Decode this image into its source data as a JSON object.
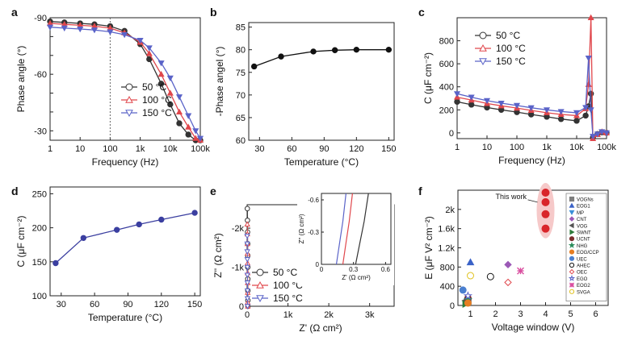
{
  "chart_data": [
    {
      "panel": "a",
      "type": "line",
      "xlabel": "Frequency (Hz)",
      "ylabel": "Phase angle (°)",
      "xscale": "log",
      "xlim": [
        1,
        100000
      ],
      "ylim": [
        -90,
        -25
      ],
      "yreverse": true,
      "xticks": [
        1,
        10,
        100,
        1000,
        10000,
        100000
      ],
      "xticklabels": [
        "1",
        "10",
        "100",
        "1k",
        "10k",
        "100k"
      ],
      "yticks": [
        -90,
        -60,
        -30
      ],
      "yticklabels": [
        "-90",
        "-60",
        "-30"
      ],
      "yticks_minor": [
        -90,
        -80,
        -70,
        -60,
        -50,
        -40,
        -30
      ],
      "yticklabels_full": [
        "-90",
        "",
        "",
        "-60",
        "",
        "",
        "-30"
      ],
      "vline_x": 100,
      "legend_position": "center-right",
      "x": [
        1,
        3,
        10,
        30,
        100,
        300,
        1000,
        2000,
        5000,
        10000,
        20000,
        40000,
        70000,
        100000
      ],
      "series": [
        {
          "name": "50 °C",
          "color": "#333333",
          "marker": "circle",
          "values": [
            -88,
            -87.5,
            -87,
            -86.5,
            -85.5,
            -83,
            -76,
            -68,
            -55,
            -44,
            -34,
            -28,
            -25,
            -25
          ]
        },
        {
          "name": "100 °C",
          "color": "#e0474c",
          "marker": "triangle-up",
          "values": [
            -87,
            -86.5,
            -86,
            -85.5,
            -84.5,
            -82,
            -77,
            -71,
            -60,
            -50,
            -40,
            -32,
            -26,
            -25
          ]
        },
        {
          "name": "150 °C",
          "color": "#5a63c8",
          "marker": "triangle-down",
          "values": [
            -85,
            -84.5,
            -84,
            -83.5,
            -82.5,
            -81,
            -78,
            -74,
            -66,
            -58,
            -48,
            -38,
            -30,
            -26
          ]
        }
      ],
      "legend": [
        "50 °C",
        "100 °C",
        "150 °C"
      ]
    },
    {
      "panel": "b",
      "type": "line",
      "xlabel": "Temperature (°C)",
      "ylabel": "-Phase angel (°)",
      "xlim": [
        20,
        155
      ],
      "ylim": [
        60,
        86
      ],
      "xticks": [
        30,
        60,
        90,
        120,
        150
      ],
      "yticks": [
        60,
        65,
        70,
        75,
        80,
        85
      ],
      "x": [
        25,
        50,
        80,
        100,
        120,
        150
      ],
      "series": [
        {
          "name": "",
          "color": "#111111",
          "marker": "circle",
          "values": [
            76.3,
            78.5,
            79.6,
            79.9,
            80.0,
            80.0
          ]
        }
      ]
    },
    {
      "panel": "c",
      "type": "line",
      "xlabel": "Frequency (Hz)",
      "ylabel": "C (μF cm⁻²)",
      "xscale": "log",
      "xlim": [
        1,
        100000
      ],
      "ylim": [
        -50,
        1000
      ],
      "xticks": [
        1,
        10,
        100,
        1000,
        10000,
        100000
      ],
      "xticklabels": [
        "1",
        "10",
        "100",
        "1k",
        "10k",
        "100k"
      ],
      "yticks": [
        0,
        200,
        400,
        600,
        800
      ],
      "legend_position": "top",
      "x": [
        1,
        3,
        10,
        30,
        100,
        300,
        1000,
        3000,
        10000,
        20000,
        25000,
        30000,
        35000,
        50000,
        70000,
        100000
      ],
      "series": [
        {
          "name": "50 °C",
          "color": "#333333",
          "marker": "circle",
          "values": [
            270,
            245,
            220,
            200,
            180,
            160,
            140,
            120,
            105,
            150,
            230,
            340,
            -40,
            -10,
            5,
            0
          ]
        },
        {
          "name": "100 °C",
          "color": "#e0474c",
          "marker": "triangle-up",
          "values": [
            310,
            285,
            255,
            235,
            215,
            195,
            175,
            160,
            150,
            210,
            420,
            1000,
            -50,
            -15,
            10,
            0
          ]
        },
        {
          "name": "150 °C",
          "color": "#5a63c8",
          "marker": "triangle-down",
          "values": [
            340,
            310,
            280,
            258,
            238,
            218,
            200,
            185,
            175,
            220,
            650,
            200,
            -30,
            -10,
            10,
            0
          ]
        }
      ],
      "legend": [
        "50 °C",
        "100 °C",
        "150 °C"
      ]
    },
    {
      "panel": "d",
      "type": "line",
      "xlabel": "Temperature (°C)",
      "ylabel": "C (μF cm⁻²)",
      "xlim": [
        20,
        155
      ],
      "ylim": [
        100,
        260
      ],
      "xticks": [
        30,
        60,
        90,
        120,
        150
      ],
      "yticks": [
        100,
        150,
        200,
        250
      ],
      "x": [
        25,
        50,
        80,
        100,
        120,
        150
      ],
      "series": [
        {
          "name": "",
          "color": "#3b3fa0",
          "marker": "circle",
          "values": [
            148,
            185,
            197,
            205,
            212,
            222
          ]
        }
      ]
    },
    {
      "panel": "e",
      "type": "scatter",
      "xlabel": "Z' (Ω cm²)",
      "ylabel": "Z'' (Ω cm²)",
      "xlim": [
        0,
        3600
      ],
      "ylim": [
        -2600,
        0
      ],
      "yreverse": true,
      "xticks": [
        0,
        1000,
        2000,
        3000
      ],
      "xticklabels": [
        "0",
        "1k",
        "2k",
        "3k"
      ],
      "yticks": [
        0,
        -1000,
        -2000
      ],
      "yticklabels": [
        "0",
        "-1k",
        "-2k"
      ],
      "series": [
        {
          "name": "50 °C",
          "color": "#333333",
          "marker": "circle",
          "x": [
            5,
            8,
            10,
            12,
            15,
            15,
            16,
            17,
            18,
            20
          ],
          "y": [
            -2500,
            -2200,
            -1900,
            -1600,
            -1300,
            -1000,
            -700,
            -400,
            -150,
            0
          ]
        },
        {
          "name": "100 °C",
          "color": "#e0474c",
          "marker": "triangle-up",
          "x": [
            3,
            5,
            7,
            9,
            11,
            12,
            13,
            14,
            15,
            16
          ],
          "y": [
            -2100,
            -1850,
            -1600,
            -1350,
            -1100,
            -850,
            -600,
            -350,
            -100,
            0
          ]
        },
        {
          "name": "150 °C",
          "color": "#5a63c8",
          "marker": "triangle-down",
          "x": [
            1,
            2,
            3,
            4,
            5,
            6,
            7,
            8,
            9,
            10
          ],
          "y": [
            -1800,
            -1600,
            -1400,
            -1200,
            -1000,
            -800,
            -600,
            -400,
            -200,
            0
          ]
        }
      ],
      "legend": [
        "50 °C",
        "100 °C",
        "150 °C"
      ],
      "inset": {
        "xlabel": "Z' (Ω cm²)",
        "ylabel": "Z'' (Ω cm²)",
        "xlim": [
          0,
          0.65
        ],
        "ylim": [
          -0.66,
          0
        ],
        "yreverse": true,
        "xticks": [
          0,
          0.3,
          0.6
        ],
        "xticklabels": [
          "0",
          "0.3",
          "0.6"
        ],
        "yticks": [
          0,
          -0.3,
          -0.6
        ],
        "yticklabels": [
          "0",
          "-0.3",
          "-0.6"
        ],
        "series": [
          {
            "name": "50 °C",
            "color": "#333333",
            "x": [
              0.32,
              0.36,
              0.4,
              0.44
            ],
            "y": [
              0,
              -0.2,
              -0.4,
              -0.66
            ]
          },
          {
            "name": "100 °C",
            "color": "#e0474c",
            "x": [
              0.2,
              0.23,
              0.26,
              0.29
            ],
            "y": [
              0,
              -0.2,
              -0.4,
              -0.66
            ]
          },
          {
            "name": "150 °C",
            "color": "#5a63c8",
            "x": [
              0.14,
              0.17,
              0.2,
              0.23
            ],
            "y": [
              0,
              -0.2,
              -0.4,
              -0.66
            ]
          }
        ]
      }
    },
    {
      "panel": "f",
      "type": "scatter",
      "xlabel": "Voltage window (V)",
      "ylabel": "E (μF V² cm⁻²)",
      "xlim": [
        0.5,
        6.5
      ],
      "ylim": [
        0,
        2400
      ],
      "xticks": [
        1,
        2,
        3,
        4,
        5,
        6
      ],
      "yticks": [
        0,
        400,
        800,
        1200,
        1600,
        2000
      ],
      "yticklabels": [
        "0",
        "400",
        "800",
        "1.2k",
        "1.6k",
        "2k"
      ],
      "annotation": "This work",
      "series": [
        {
          "name": "VOGNs",
          "color": "#7d7d7d",
          "marker": "square",
          "x": [
            0.9
          ],
          "y": [
            60
          ]
        },
        {
          "name": "EOG1",
          "color": "#3b63c8",
          "marker": "triangle-up",
          "x": [
            1.0
          ],
          "y": [
            900
          ]
        },
        {
          "name": "MP",
          "color": "#3b8fd8",
          "marker": "triangle-down",
          "x": [
            0.9
          ],
          "y": [
            80
          ]
        },
        {
          "name": "CNT",
          "color": "#9b59b6",
          "marker": "diamond",
          "x": [
            2.5
          ],
          "y": [
            850
          ]
        },
        {
          "name": "VOG",
          "color": "#555555",
          "marker": "triangle-left",
          "x": [
            0.8
          ],
          "y": [
            100
          ]
        },
        {
          "name": "SWNT",
          "color": "#2c7a3a",
          "marker": "triangle-right",
          "x": [
            0.8
          ],
          "y": [
            30
          ]
        },
        {
          "name": "UCNT",
          "color": "#7a2c2c",
          "marker": "circle",
          "x": [
            0.9
          ],
          "y": [
            150
          ]
        },
        {
          "name": "NHG",
          "color": "#2a8c5a",
          "marker": "star",
          "x": [
            0.9
          ],
          "y": [
            120
          ]
        },
        {
          "name": "EOG/CCP",
          "color": "#e67e22",
          "marker": "circle",
          "x": [
            0.9
          ],
          "y": [
            50
          ]
        },
        {
          "name": "UEC",
          "color": "#4a7fd0",
          "marker": "circle",
          "x": [
            0.7
          ],
          "y": [
            320
          ]
        },
        {
          "name": "AHEC",
          "color": "#111111",
          "marker": "circle-open",
          "x": [
            1.8
          ],
          "y": [
            600
          ]
        },
        {
          "name": "OEC",
          "color": "#e0474c",
          "marker": "diamond-open",
          "x": [
            2.5
          ],
          "y": [
            480
          ]
        },
        {
          "name": "EGO",
          "color": "#5a63c8",
          "marker": "star-open",
          "x": [
            0.9
          ],
          "y": [
            200
          ]
        },
        {
          "name": "EOG2",
          "color": "#d94fa0",
          "marker": "x",
          "x": [
            3.0
          ],
          "y": [
            720
          ]
        },
        {
          "name": "SVGA",
          "color": "#e0c21f",
          "marker": "circle-open",
          "x": [
            1.0
          ],
          "y": [
            620
          ]
        },
        {
          "name": "This work",
          "color": "#d9252a",
          "marker": "circle",
          "x": [
            4.0,
            4.0,
            4.0,
            4.0
          ],
          "y": [
            2350,
            2150,
            1900,
            1600
          ]
        }
      ]
    }
  ]
}
